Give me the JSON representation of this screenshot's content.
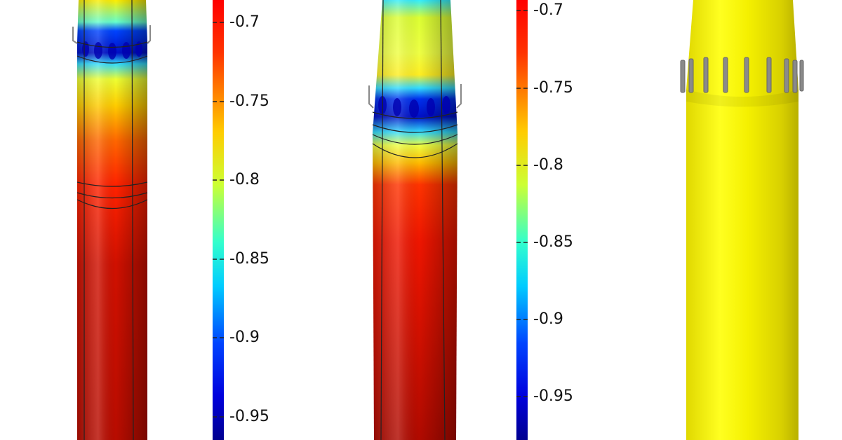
{
  "colorbars": [
    {
      "ticks": [
        "-0.7",
        "-0.75",
        "-0.8",
        "-0.85",
        "-0.9",
        "-0.95"
      ]
    },
    {
      "ticks": [
        "-0.7",
        "-0.75",
        "-0.8",
        "-0.85",
        "-0.9",
        "-0.95"
      ]
    }
  ],
  "colors": {
    "background": "#ffffff",
    "jet": [
      "#00007f",
      "#0000ff",
      "#00ffff",
      "#ffff00",
      "#ff0000",
      "#7f0000"
    ],
    "third_body": "#f2f200",
    "fin": "#888888"
  },
  "objects": [
    {
      "name": "pressure-field-cylinder-1"
    },
    {
      "name": "pressure-field-cylinder-2"
    },
    {
      "name": "geometry-cylinder-with-fins"
    }
  ]
}
